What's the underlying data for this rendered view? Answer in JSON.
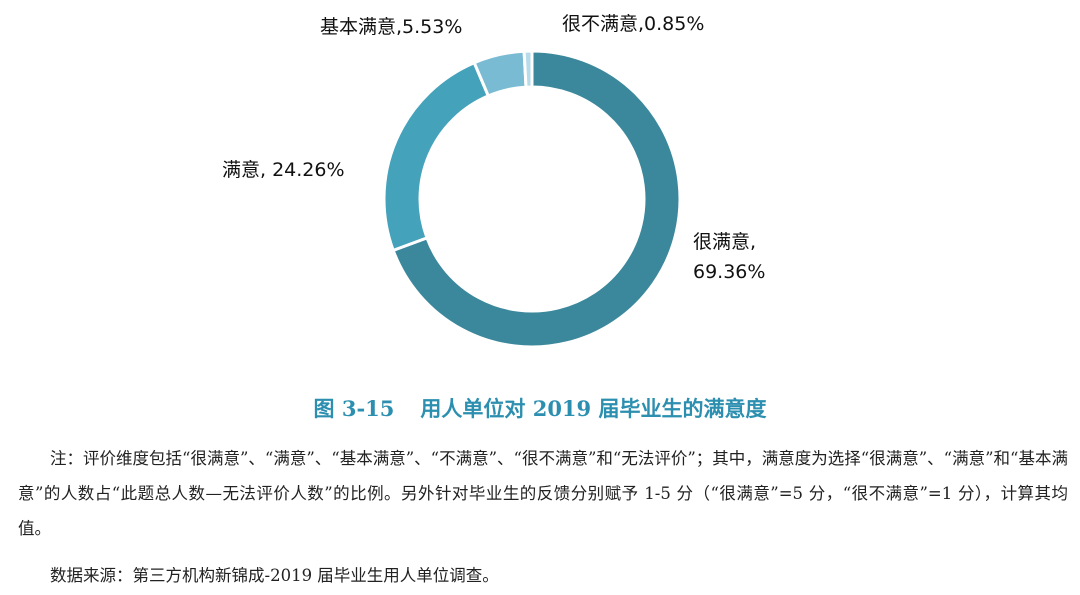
{
  "chart_data": {
    "type": "pie",
    "donut": true,
    "categories": [
      "很满意",
      "满意",
      "基本满意",
      "很不满意"
    ],
    "values": [
      69.36,
      24.26,
      5.53,
      0.85
    ],
    "colors": [
      "#3b889c",
      "#45a2bb",
      "#78bbd3",
      "#b7dbe8"
    ],
    "labels": [
      "很满意,",
      "满意, 24.26%",
      "基本满意,5.53%",
      "很不满意,0.85%"
    ],
    "label_values": [
      "69.36%",
      "",
      "",
      ""
    ]
  },
  "figure": {
    "number": "图 3-15",
    "title": "用人单位对 2019 届毕业生的满意度"
  },
  "note": "注：评价维度包括“很满意”、“满意”、“基本满意”、“不满意”、“很不满意”和“无法评价”；其中，满意度为选择“很满意”、“满意”和“基本满意”的人数占“此题总人数—无法评价人数”的比例。另外针对毕业生的反馈分别赋予 1-5 分（“很满意”=5 分，“很不满意”=1 分），计算其均值。",
  "source": "数据来源：第三方机构新锦成-2019 届毕业生用人单位调查。"
}
